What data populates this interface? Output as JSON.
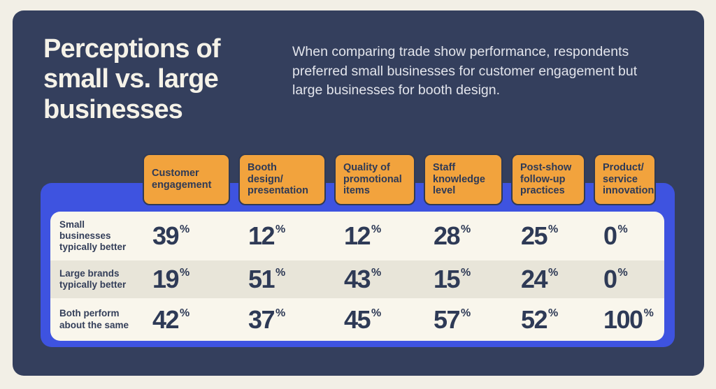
{
  "title": "Perceptions of\nsmall vs. large\nbusinesses",
  "description": "When comparing trade show performance, respondents\npreferred small businesses for customer engagement but\nlarge businesses for booth design.",
  "chart_data": {
    "type": "table",
    "title": "Perceptions of small vs. large businesses",
    "unit": "%",
    "columns": [
      "Customer\nengagement",
      "Booth\ndesign/\npresentation",
      "Quality of\npromotional\nitems",
      "Staff\nknowledge\nlevel",
      "Post-show\nfollow-up\npractices",
      "Product/\nservice\ninnovation"
    ],
    "rows": [
      {
        "label": "Small\nbusinesses\ntypically better",
        "values": [
          39,
          12,
          12,
          28,
          25,
          0
        ]
      },
      {
        "label": "Large brands\ntypically better",
        "values": [
          19,
          51,
          43,
          15,
          24,
          0
        ]
      },
      {
        "label": "Both perform\nabout the same",
        "values": [
          42,
          37,
          45,
          57,
          52,
          100
        ]
      }
    ]
  },
  "colors": {
    "page_background": "#f2efe6",
    "card_navy": "#343f5d",
    "panel_blue": "#3e53e0",
    "header_orange": "#f2a33d",
    "table_cream": "#f9f6ec",
    "row_beige": "#e8e5d9",
    "text_navy": "#2e3a56",
    "text_cream": "#f5f2e8"
  }
}
